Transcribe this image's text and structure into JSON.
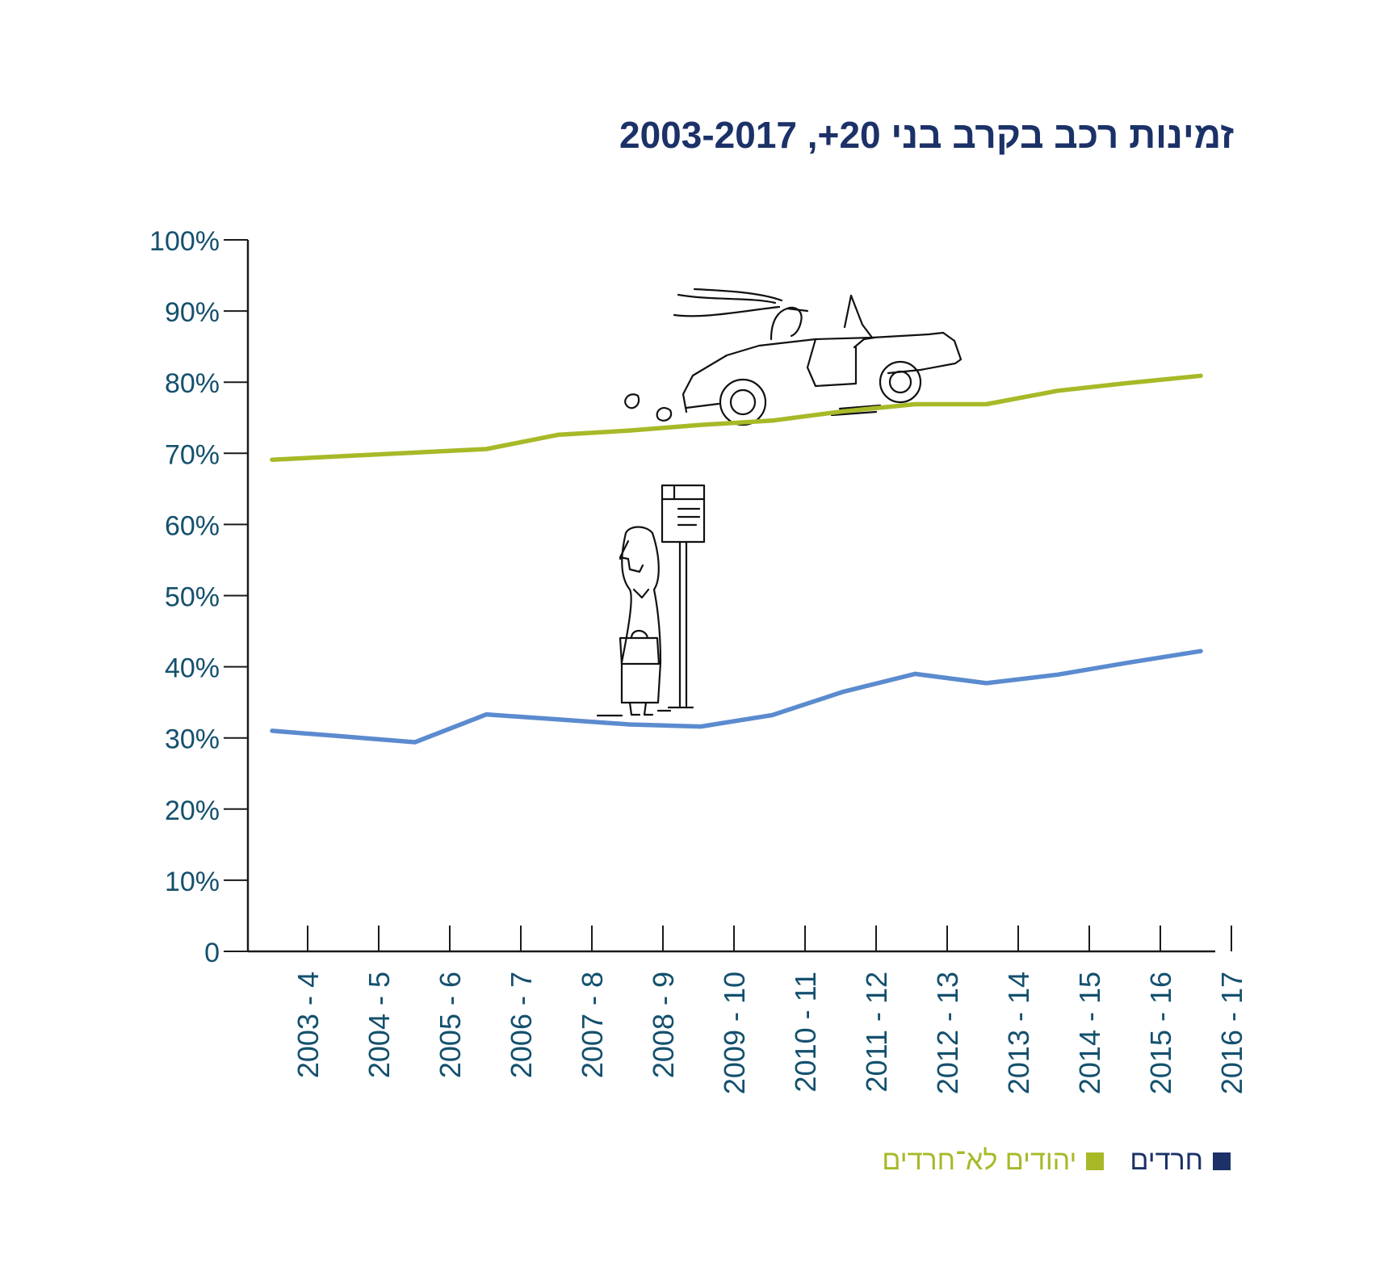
{
  "title": "זמינות רכב בקרב בני 20+, 2003-2017",
  "colors": {
    "haredi_line": "#5b8bcf",
    "non_haredi_line": "#a8b928",
    "axis": "#1a1a1a",
    "tick_text": "#14506e",
    "title": "#1b3168",
    "legend_haredi": "#1b3168",
    "legend_non_haredi": "#a8b928"
  },
  "legend": [
    {
      "label": "חרדים",
      "color": "#1b3168"
    },
    {
      "label": "יהודים לא־חרדים",
      "color": "#a8b928"
    }
  ],
  "chart_data": {
    "type": "line",
    "title": "זמינות רכב בקרב בני 20+, 2003-2017",
    "xlabel": "",
    "ylabel": "",
    "ylim": [
      0,
      100
    ],
    "yticks": [
      "0",
      "10%",
      "20%",
      "30%",
      "40%",
      "50%",
      "60%",
      "70%",
      "80%",
      "90%",
      "100%"
    ],
    "categories": [
      "2003 - 4",
      "2004 - 5",
      "2005 - 6",
      "2006 - 7",
      "2007 - 8",
      "2008 - 9",
      "2009 - 10",
      "2010 - 11",
      "2011 - 12",
      "2012 - 13",
      "2013 - 14",
      "2014 - 15",
      "2015 - 16",
      "2016 - 17"
    ],
    "series": [
      {
        "name": "יהודים לא־חרדים",
        "values": [
          69.1,
          69.6,
          70.1,
          70.6,
          72.6,
          73.2,
          74.0,
          74.6,
          75.9,
          76.9,
          76.9,
          78.8,
          79.9,
          80.9
        ]
      },
      {
        "name": "חרדים",
        "values": [
          31.0,
          30.2,
          29.4,
          33.3,
          32.6,
          31.9,
          31.6,
          33.2,
          36.5,
          39.0,
          37.7,
          38.9,
          40.6,
          42.2
        ]
      }
    ],
    "grid": false,
    "legend_position": "bottom-right"
  }
}
